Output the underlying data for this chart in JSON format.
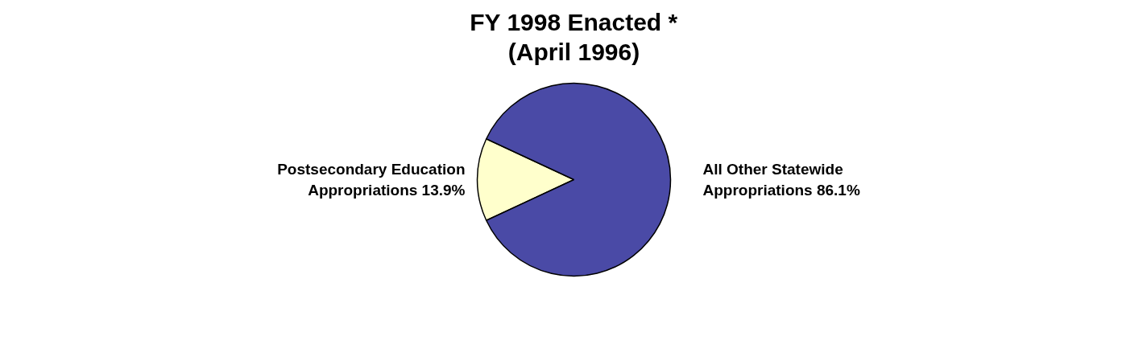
{
  "chart_data": {
    "type": "pie",
    "title": "FY 1998 Enacted *\n(April 1996)",
    "categories": [
      "Postsecondary Education Appropriations",
      "All Other Statewide Appropriations"
    ],
    "values": [
      13.9,
      86.1
    ],
    "colors": [
      "#ffffcc",
      "#4a4aa6"
    ],
    "value_labels": [
      "13.9%",
      "86.1%"
    ]
  }
}
